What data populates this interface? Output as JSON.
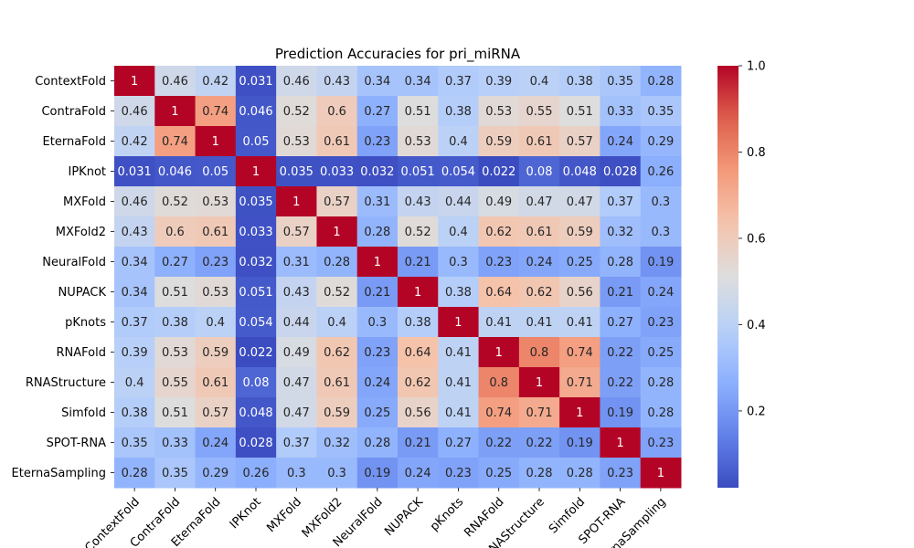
{
  "chart_data": {
    "type": "heatmap",
    "title": "Prediction Accuracies for pri_miRNA",
    "xlabel": "",
    "ylabel": "",
    "labels": [
      "ContextFold",
      "ContraFold",
      "EternaFold",
      "IPKnot",
      "MXFold",
      "MXFold2",
      "NeuralFold",
      "NUPACK",
      "pKnots",
      "RNAFold",
      "RNAStructure",
      "Simfold",
      "SPOT-RNA",
      "EternaSampling"
    ],
    "matrix": [
      [
        1,
        0.46,
        0.42,
        0.031,
        0.46,
        0.43,
        0.34,
        0.34,
        0.37,
        0.39,
        0.4,
        0.38,
        0.35,
        0.28
      ],
      [
        0.46,
        1,
        0.74,
        0.046,
        0.52,
        0.6,
        0.27,
        0.51,
        0.38,
        0.53,
        0.55,
        0.51,
        0.33,
        0.35
      ],
      [
        0.42,
        0.74,
        1,
        0.05,
        0.53,
        0.61,
        0.23,
        0.53,
        0.4,
        0.59,
        0.61,
        0.57,
        0.24,
        0.29
      ],
      [
        0.031,
        0.046,
        0.05,
        1,
        0.035,
        0.033,
        0.032,
        0.051,
        0.054,
        0.022,
        0.08,
        0.048,
        0.028,
        0.26
      ],
      [
        0.46,
        0.52,
        0.53,
        0.035,
        1,
        0.57,
        0.31,
        0.43,
        0.44,
        0.49,
        0.47,
        0.47,
        0.37,
        0.3
      ],
      [
        0.43,
        0.6,
        0.61,
        0.033,
        0.57,
        1,
        0.28,
        0.52,
        0.4,
        0.62,
        0.61,
        0.59,
        0.32,
        0.3
      ],
      [
        0.34,
        0.27,
        0.23,
        0.032,
        0.31,
        0.28,
        1,
        0.21,
        0.3,
        0.23,
        0.24,
        0.25,
        0.28,
        0.19
      ],
      [
        0.34,
        0.51,
        0.53,
        0.051,
        0.43,
        0.52,
        0.21,
        1,
        0.38,
        0.64,
        0.62,
        0.56,
        0.21,
        0.24
      ],
      [
        0.37,
        0.38,
        0.4,
        0.054,
        0.44,
        0.4,
        0.3,
        0.38,
        1,
        0.41,
        0.41,
        0.41,
        0.27,
        0.23
      ],
      [
        0.39,
        0.53,
        0.59,
        0.022,
        0.49,
        0.62,
        0.23,
        0.64,
        0.41,
        1,
        0.8,
        0.74,
        0.22,
        0.25
      ],
      [
        0.4,
        0.55,
        0.61,
        0.08,
        0.47,
        0.61,
        0.24,
        0.62,
        0.41,
        0.8,
        1,
        0.71,
        0.22,
        0.28
      ],
      [
        0.38,
        0.51,
        0.57,
        0.048,
        0.47,
        0.59,
        0.25,
        0.56,
        0.41,
        0.74,
        0.71,
        1,
        0.19,
        0.28
      ],
      [
        0.35,
        0.33,
        0.24,
        0.028,
        0.37,
        0.32,
        0.28,
        0.21,
        0.27,
        0.22,
        0.22,
        0.19,
        1,
        0.23
      ],
      [
        0.28,
        0.35,
        0.29,
        0.26,
        0.3,
        0.3,
        0.19,
        0.24,
        0.23,
        0.25,
        0.28,
        0.28,
        0.23,
        1
      ]
    ],
    "colormap": "coolwarm",
    "vmin": 0.022,
    "vmax": 1,
    "colorbar_ticks": [
      0.2,
      0.4,
      0.6,
      0.8,
      1.0
    ],
    "colorbar_tick_labels": [
      "0.2",
      "0.4",
      "0.6",
      "0.8",
      "1.0"
    ]
  }
}
